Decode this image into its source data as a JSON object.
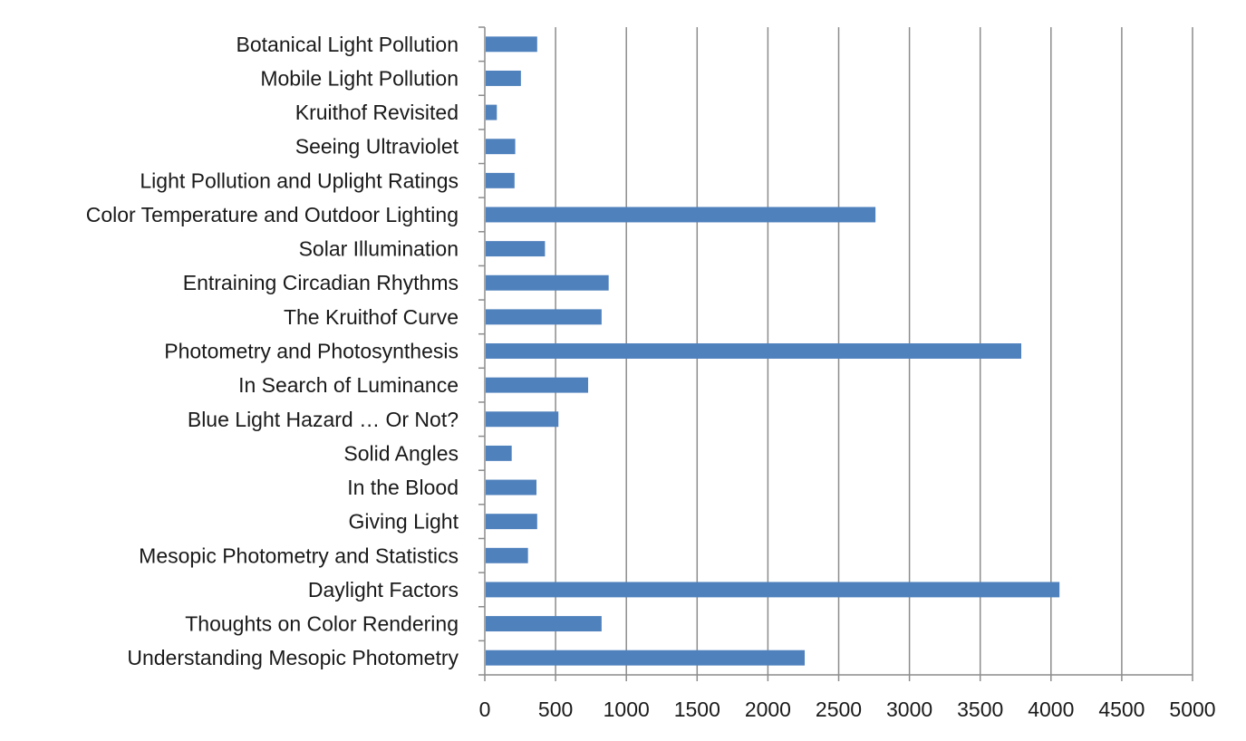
{
  "chart_data": {
    "type": "bar",
    "orientation": "horizontal",
    "title": "",
    "xlabel": "",
    "ylabel": "",
    "xlim": [
      0,
      5000
    ],
    "x_ticks": [
      0,
      500,
      1000,
      1500,
      2000,
      2500,
      3000,
      3500,
      4000,
      4500,
      5000
    ],
    "grid": "vertical major gridlines",
    "legend": "none",
    "bar_color": "#4f81bd",
    "categories": [
      "Botanical Light Pollution",
      "Mobile Light Pollution",
      "Kruithof Revisited",
      "Seeing Ultraviolet",
      "Light Pollution and Uplight Ratings",
      "Color Temperature and Outdoor Lighting",
      "Solar Illumination",
      "Entraining Circadian Rhythms",
      "The Kruithof Curve",
      "Photometry and Photosynthesis",
      "In Search of Luminance",
      "Blue Light Hazard … Or Not?",
      "Solid Angles",
      "In the Blood",
      "Giving Light",
      "Mesopic Photometry and Statistics",
      "Daylight Factors",
      "Thoughts on Color Rendering",
      "Understanding Mesopic Photometry"
    ],
    "values": [
      370,
      255,
      85,
      215,
      210,
      2760,
      425,
      875,
      825,
      3790,
      730,
      520,
      190,
      365,
      370,
      305,
      4060,
      825,
      2260
    ]
  }
}
